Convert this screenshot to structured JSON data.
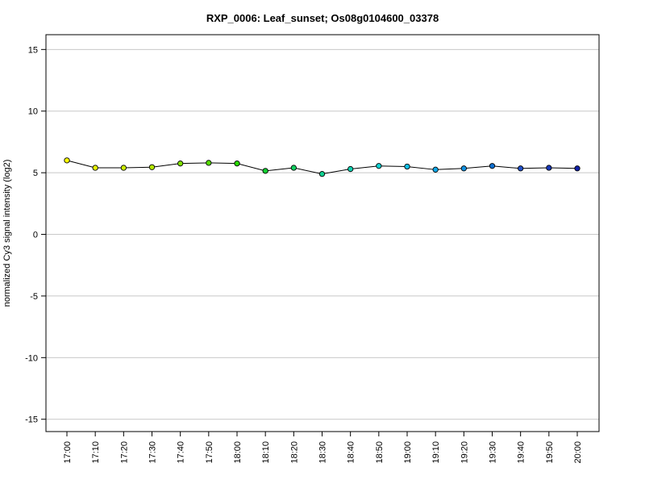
{
  "chart_data": {
    "type": "line",
    "title": "RXP_0006: Leaf_sunset; Os08g0104600_03378",
    "xlabel": "",
    "ylabel": "normalized Cy3 signal intensity (log2)",
    "categories": [
      "17:00",
      "17:10",
      "17:20",
      "17:30",
      "17:40",
      "17:50",
      "18:00",
      "18:10",
      "18:20",
      "18:30",
      "18:40",
      "18:50",
      "19:00",
      "19:10",
      "19:20",
      "19:30",
      "19:40",
      "19:50",
      "20:00"
    ],
    "series": [
      {
        "values": [
          6.0,
          5.4,
          5.4,
          5.45,
          5.75,
          5.8,
          5.75,
          5.15,
          5.4,
          4.9,
          5.3,
          5.55,
          5.5,
          5.25,
          5.35,
          5.55,
          5.35,
          5.4,
          5.35
        ],
        "point_colors": [
          "#FFFF00",
          "#E6F200",
          "#CCEC00",
          "#B3E600",
          "#80E000",
          "#55DD00",
          "#2AD800",
          "#10D030",
          "#10D060",
          "#10D090",
          "#10D0B0",
          "#10D0D0",
          "#10C0E8",
          "#10A8E8",
          "#1090E0",
          "#1070D0",
          "#2050C8",
          "#1838B8",
          "#1020A8"
        ]
      }
    ],
    "ylim": [
      -16,
      16.2
    ],
    "yticks": [
      -15,
      -10,
      -5,
      0,
      5,
      10,
      15
    ],
    "grid": true,
    "line_color": "#000000",
    "grid_color": "#C8C8C8"
  }
}
